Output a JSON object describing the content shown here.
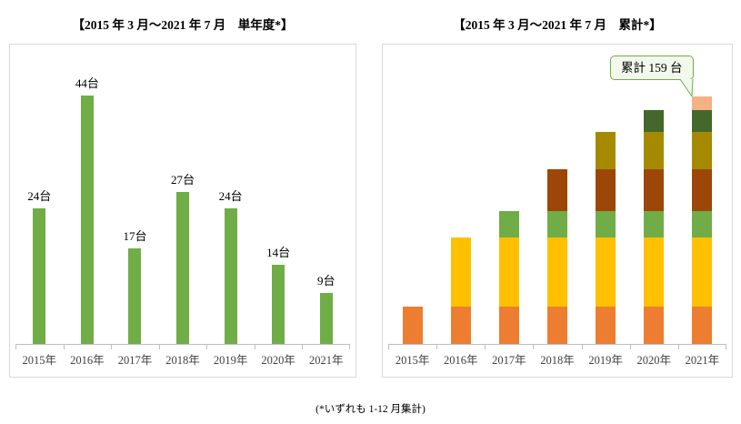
{
  "footnote": "(*いずれも 1-12 月集計)",
  "chart_data": [
    {
      "type": "bar",
      "title": "【2015 年 3 月～2021 年 7 月　単年度*】",
      "categories": [
        "2015年",
        "2016年",
        "2017年",
        "2018年",
        "2019年",
        "2020年",
        "2021年"
      ],
      "values": [
        24,
        44,
        17,
        27,
        24,
        14,
        9
      ],
      "data_labels": [
        "24台",
        "44台",
        "17台",
        "27台",
        "24台",
        "14台",
        "9台"
      ],
      "bar_color": "#70AD47",
      "xlabel": "",
      "ylabel": "",
      "grid": false,
      "legend": "none"
    },
    {
      "type": "bar",
      "stacked": true,
      "title": "【2015 年 3 月～2021 年 7 月　累計*】",
      "categories": [
        "2015年",
        "2016年",
        "2017年",
        "2018年",
        "2019年",
        "2020年",
        "2021年"
      ],
      "series": [
        {
          "name": "2015",
          "color": "#ED7D31",
          "values": [
            24,
            24,
            24,
            24,
            24,
            24,
            24
          ]
        },
        {
          "name": "2016",
          "color": "#FFC000",
          "values": [
            0,
            44,
            44,
            44,
            44,
            44,
            44
          ]
        },
        {
          "name": "2017",
          "color": "#70AD47",
          "values": [
            0,
            0,
            17,
            17,
            17,
            17,
            17
          ]
        },
        {
          "name": "2018",
          "color": "#9C4708",
          "values": [
            0,
            0,
            0,
            27,
            27,
            27,
            27
          ]
        },
        {
          "name": "2019",
          "color": "#A58A00",
          "values": [
            0,
            0,
            0,
            0,
            24,
            24,
            24
          ]
        },
        {
          "name": "2020",
          "color": "#44682B",
          "values": [
            0,
            0,
            0,
            0,
            0,
            14,
            14
          ]
        },
        {
          "name": "2021",
          "color": "#F4B183",
          "values": [
            0,
            0,
            0,
            0,
            0,
            0,
            9
          ]
        }
      ],
      "totals": [
        24,
        68,
        85,
        112,
        136,
        150,
        159
      ],
      "annotation": "累計 159 台",
      "annotation_colors": {
        "fill": "#F2F8EB",
        "border": "#70AD47"
      },
      "xlabel": "",
      "ylabel": "",
      "grid": false,
      "legend": "none"
    }
  ]
}
